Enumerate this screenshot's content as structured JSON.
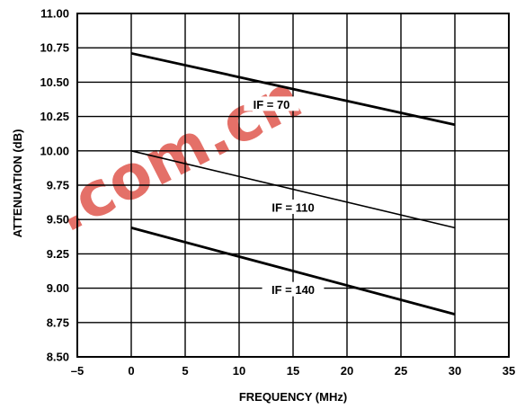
{
  "chart_data": {
    "type": "line",
    "xlabel": "FREQUENCY (MHz)",
    "ylabel": "ATTENUATION (dB)",
    "xlim": [
      -5,
      35
    ],
    "ylim": [
      8.5,
      11.0
    ],
    "x_ticks": [
      -5,
      0,
      5,
      10,
      15,
      20,
      25,
      30,
      35
    ],
    "x_tick_labels": [
      "–5",
      "0",
      "5",
      "10",
      "15",
      "20",
      "25",
      "30",
      "35"
    ],
    "y_ticks": [
      8.5,
      8.75,
      9.0,
      9.25,
      9.5,
      9.75,
      10.0,
      10.25,
      10.5,
      10.75,
      11.0
    ],
    "y_tick_labels": [
      "8.50",
      "8.75",
      "9.00",
      "9.25",
      "9.50",
      "9.75",
      "10.00",
      "10.25",
      "10.50",
      "10.75",
      "11.00"
    ],
    "grid": true,
    "series": [
      {
        "name": "IF = 70",
        "x": [
          0,
          30
        ],
        "y": [
          10.71,
          10.19
        ],
        "label_at": [
          13,
          10.33
        ],
        "line_width": "thick"
      },
      {
        "name": "IF = 110",
        "x": [
          0,
          30
        ],
        "y": [
          10.0,
          9.44
        ],
        "label_at": [
          15,
          9.58
        ],
        "line_width": "thin"
      },
      {
        "name": "IF = 140",
        "x": [
          0,
          30
        ],
        "y": [
          9.44,
          8.81
        ],
        "label_at": [
          15,
          8.98
        ],
        "line_width": "thick"
      }
    ]
  },
  "watermark": {
    "text": ".com.cn",
    "color": "#e0584e"
  }
}
